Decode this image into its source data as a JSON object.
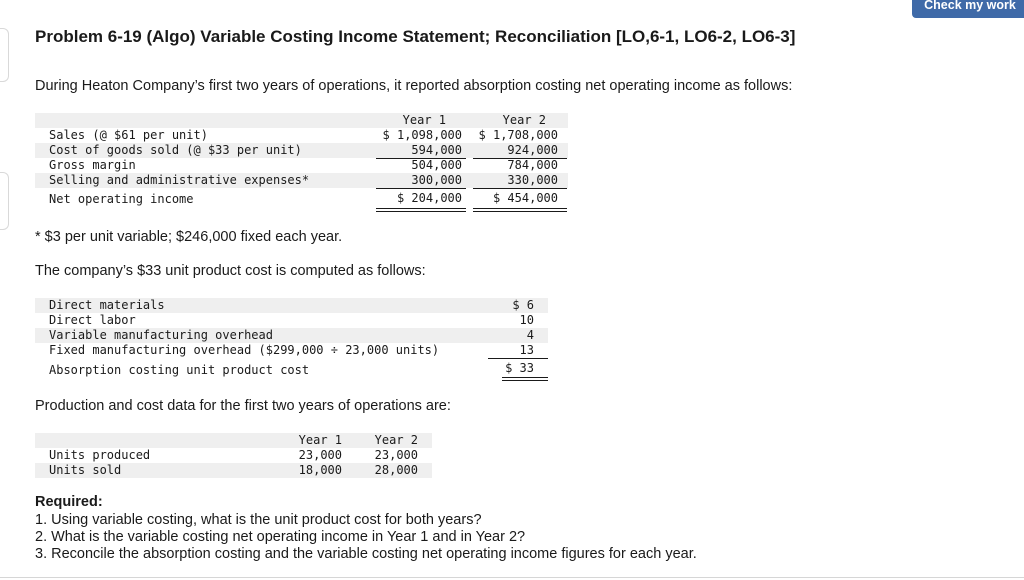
{
  "header": {
    "check_button": "Check my work"
  },
  "problem": {
    "title": "Problem 6-19 (Algo) Variable Costing Income Statement; Reconciliation [LO,6-1, LO6-2, LO6-3]",
    "intro": "During Heaton Company’s first two years of operations, it reported absorption costing net operating income as follows:"
  },
  "income_table": {
    "headers": [
      "Year 1",
      "Year 2"
    ],
    "rows": [
      {
        "label": "Sales (@ $61 per unit)",
        "y1": "$ 1,098,000",
        "y2": "$ 1,708,000"
      },
      {
        "label": "Cost of goods sold (@ $33 per unit)",
        "y1": "594,000",
        "y2": "924,000"
      },
      {
        "label": "Gross margin",
        "y1": "504,000",
        "y2": "784,000"
      },
      {
        "label": "Selling and administrative expenses*",
        "y1": "300,000",
        "y2": "330,000"
      },
      {
        "label": "Net operating income",
        "y1": "$ 204,000",
        "y2": "$ 454,000"
      }
    ],
    "footnote": "* $3 per unit variable; $246,000 fixed each year."
  },
  "unit_cost": {
    "intro": "The company’s $33 unit product cost is computed as follows:",
    "rows": [
      {
        "label": "Direct materials",
        "value": "$ 6"
      },
      {
        "label": "Direct labor",
        "value": "10"
      },
      {
        "label": "Variable manufacturing overhead",
        "value": "4"
      },
      {
        "label": "Fixed manufacturing overhead ($299,000 ÷ 23,000 units)",
        "value": "13"
      },
      {
        "label": "Absorption costing unit product cost",
        "value": "$ 33"
      }
    ]
  },
  "production": {
    "intro": "Production and cost data for the first two years of operations are:",
    "headers": [
      "Year 1",
      "Year 2"
    ],
    "rows": [
      {
        "label": "Units produced",
        "y1": "23,000",
        "y2": "23,000"
      },
      {
        "label": "Units sold",
        "y1": "18,000",
        "y2": "28,000"
      }
    ]
  },
  "required": {
    "heading": "Required:",
    "items": [
      "1. Using variable costing, what is the unit product cost for both years?",
      "2. What is the variable costing net operating income in Year 1 and in Year 2?",
      "3. Reconcile the absorption costing and the variable costing net operating income figures for each year."
    ]
  }
}
